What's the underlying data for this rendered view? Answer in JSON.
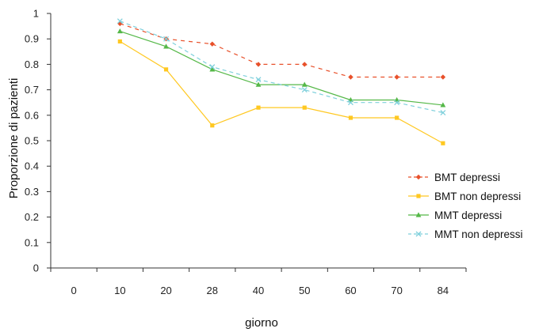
{
  "chart_data": {
    "type": "line",
    "title": "",
    "xlabel": "giorno",
    "ylabel": "Proporzione di pazienti",
    "categories": [
      "0",
      "10",
      "20",
      "28",
      "40",
      "50",
      "60",
      "70",
      "84"
    ],
    "ylim": [
      0,
      1
    ],
    "yticks": [
      "0",
      "0.1",
      "0.2",
      "0.3",
      "0.4",
      "0.5",
      "0.6",
      "0.7",
      "0.8",
      "0.9",
      "1"
    ],
    "grid": false,
    "legend_position": "right",
    "series": [
      {
        "name": "BMT depressi",
        "color": "#e8502a",
        "dash": "5,5",
        "marker": "diamond",
        "values": [
          null,
          0.96,
          0.9,
          0.88,
          0.8,
          0.8,
          0.75,
          0.75,
          0.75
        ]
      },
      {
        "name": "BMT non depressi",
        "color": "#ffc821",
        "dash": "",
        "marker": "square",
        "values": [
          null,
          0.89,
          0.78,
          0.56,
          0.63,
          0.63,
          0.59,
          0.59,
          0.49
        ]
      },
      {
        "name": "MMT depressi",
        "color": "#55b848",
        "dash": "",
        "marker": "triangle",
        "values": [
          null,
          0.93,
          0.87,
          0.78,
          0.72,
          0.72,
          0.66,
          0.66,
          0.64
        ]
      },
      {
        "name": "MMT non depressi",
        "color": "#7fd0dc",
        "dash": "5,4",
        "marker": "x",
        "values": [
          null,
          0.97,
          0.9,
          0.79,
          0.74,
          0.7,
          0.65,
          0.65,
          0.61
        ]
      }
    ]
  }
}
